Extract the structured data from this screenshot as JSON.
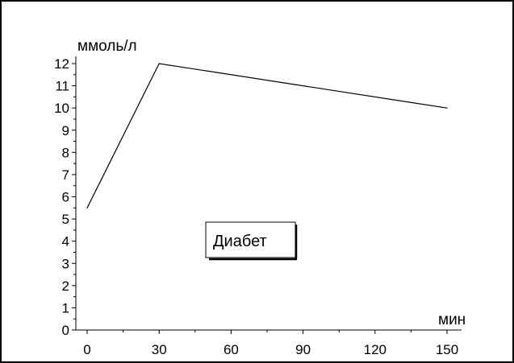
{
  "chart_data": {
    "type": "line",
    "ylabel": "ммоль/л",
    "xlabel": "мин",
    "x": [
      0,
      30,
      150
    ],
    "series": [
      {
        "values": [
          5.5,
          12,
          10
        ]
      }
    ],
    "xlim": [
      0,
      150
    ],
    "ylim": [
      0,
      12
    ],
    "xticks": [
      0,
      30,
      60,
      90,
      120,
      150
    ],
    "yticks": [
      0,
      1,
      2,
      3,
      4,
      5,
      6,
      7,
      8,
      9,
      10,
      11,
      12
    ],
    "annotation": "Диабет",
    "grid": false,
    "line_color": "#000000"
  }
}
